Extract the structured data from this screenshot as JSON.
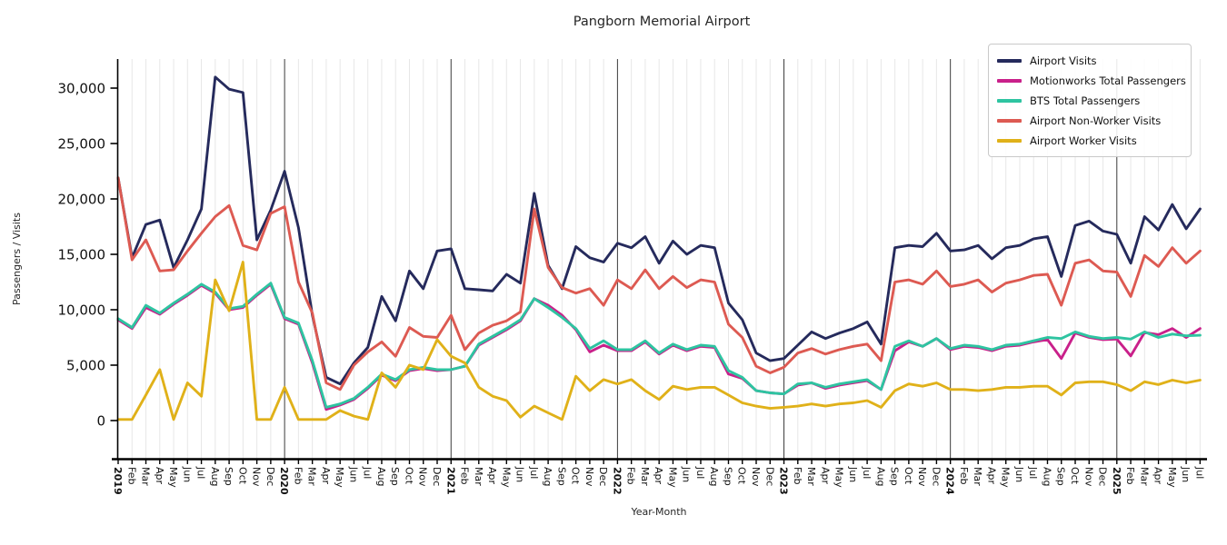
{
  "title": "Pangborn Memorial Airport",
  "x_axis_label": "Year-Month",
  "y_axis_label": "Passengers / Visits",
  "chart_data": {
    "type": "line",
    "title": "Pangborn Memorial Airport",
    "xlabel": "Year-Month",
    "ylabel": "Passengers / Visits",
    "legend_position": "upper right",
    "grid": "vertical gridline per month; darker vertical line at each year start",
    "yticks": [
      0,
      5000,
      10000,
      15000,
      20000,
      25000,
      30000
    ],
    "ylim": [
      0,
      32500
    ],
    "x_tick_labels": [
      "2019",
      "Feb",
      "Mar",
      "Apr",
      "May",
      "Jun",
      "Jul",
      "Aug",
      "Sep",
      "Oct",
      "Nov",
      "Dec",
      "2020",
      "Feb",
      "Mar",
      "Apr",
      "May",
      "Jun",
      "Jul",
      "Aug",
      "Sep",
      "Oct",
      "Nov",
      "Dec",
      "2021",
      "Feb",
      "Mar",
      "Apr",
      "May",
      "Jun",
      "Jul",
      "Aug",
      "Sep",
      "Oct",
      "Nov",
      "Dec",
      "2022",
      "Feb",
      "Mar",
      "Apr",
      "May",
      "Jun",
      "Jul",
      "Aug",
      "Sep",
      "Oct",
      "Nov",
      "Dec",
      "2023",
      "Feb",
      "Mar",
      "Apr",
      "May",
      "Jun",
      "Jul",
      "Aug",
      "Sep",
      "Oct",
      "Nov",
      "Dec",
      "2024",
      "Feb",
      "Mar",
      "Apr",
      "May",
      "Jun",
      "Jul",
      "Aug",
      "Sep",
      "Oct",
      "Nov",
      "Dec",
      "2025",
      "Feb",
      "Mar",
      "Apr",
      "May",
      "Jun",
      "Jul"
    ],
    "series": [
      {
        "name": "Airport Visits",
        "color": "#252a5c",
        "values": [
          21900,
          14700,
          17700,
          18100,
          13800,
          16300,
          19100,
          31000,
          29900,
          29600,
          16300,
          19000,
          22500,
          17400,
          9500,
          3900,
          3300,
          5200,
          6600,
          11200,
          9000,
          13500,
          11900,
          15300,
          15500,
          11900,
          11800,
          11700,
          13200,
          12400,
          20500,
          14000,
          11900,
          15700,
          14700,
          14300,
          16000,
          15600,
          16600,
          14200,
          16200,
          15000,
          15800,
          15600,
          10600,
          9100,
          6100,
          5400,
          5600,
          6800,
          8000,
          7400,
          7900,
          8300,
          8900,
          6900,
          15600,
          15800,
          15700,
          16900,
          15300,
          15400,
          15800,
          14600,
          15600,
          15800,
          16400,
          16600,
          13000,
          17600,
          18000,
          17100,
          16800,
          14200,
          18400,
          17200,
          19500,
          17300,
          19100
        ]
      },
      {
        "name": "Motionworks Total Passengers",
        "color": "#c9208a",
        "values": [
          9100,
          8300,
          10200,
          9600,
          10500,
          11300,
          12200,
          11500,
          10000,
          10200,
          11300,
          12300,
          9200,
          8700,
          5200,
          1000,
          1400,
          1900,
          2900,
          4100,
          3600,
          4500,
          4700,
          4500,
          4600,
          4900,
          6800,
          7500,
          8200,
          9000,
          11000,
          10400,
          9500,
          8200,
          6200,
          6800,
          6300,
          6300,
          7100,
          6000,
          6800,
          6300,
          6700,
          6600,
          4200,
          3800,
          2700,
          2500,
          2400,
          3200,
          3400,
          2900,
          3200,
          3400,
          3600,
          2800,
          6300,
          7100,
          6700,
          7400,
          6400,
          6700,
          6600,
          6300,
          6700,
          6800,
          7100,
          7300,
          5600,
          7900,
          7500,
          7300,
          7350,
          5840,
          7950,
          7750,
          8300,
          7500,
          8300
        ]
      },
      {
        "name": "BTS Total Passengers",
        "color": "#2ec4a1",
        "values": [
          9200,
          8400,
          10400,
          9700,
          10600,
          11400,
          12300,
          11600,
          10100,
          10300,
          11400,
          12400,
          9300,
          8800,
          5400,
          1200,
          1500,
          2000,
          3000,
          4200,
          3700,
          4600,
          4800,
          4600,
          4600,
          4900,
          6900,
          7600,
          8300,
          9100,
          11000,
          10200,
          9300,
          8300,
          6500,
          7200,
          6400,
          6400,
          7200,
          6100,
          6900,
          6400,
          6800,
          6700,
          4500,
          3900,
          2700,
          2500,
          2400,
          3300,
          3400,
          3000,
          3300,
          3500,
          3700,
          2800,
          6700,
          7200,
          6700,
          7400,
          6500,
          6800,
          6700,
          6400,
          6800,
          6900,
          7200,
          7500,
          7400,
          8000,
          7600,
          7400,
          7500,
          7350,
          8000,
          7500,
          7800,
          7650,
          7700
        ]
      },
      {
        "name": "Airport Non-Worker Visits",
        "color": "#dd5a52",
        "values": [
          21900,
          14500,
          16300,
          13500,
          13600,
          15300,
          16900,
          18400,
          19400,
          15800,
          15400,
          18700,
          19300,
          12500,
          9700,
          3400,
          2800,
          5000,
          6200,
          7100,
          5800,
          8400,
          7600,
          7500,
          9500,
          6400,
          7900,
          8600,
          9000,
          9800,
          19100,
          13800,
          12000,
          11500,
          11900,
          10400,
          12700,
          11900,
          13600,
          11900,
          13000,
          12000,
          12700,
          12500,
          8700,
          7500,
          4900,
          4300,
          4800,
          6100,
          6500,
          6000,
          6400,
          6700,
          6900,
          5400,
          12500,
          12700,
          12300,
          13500,
          12100,
          12300,
          12700,
          11600,
          12400,
          12700,
          13100,
          13200,
          10400,
          14200,
          14500,
          13500,
          13400,
          11200,
          14900,
          13900,
          15600,
          14200,
          15300
        ]
      },
      {
        "name": "Airport Worker Visits",
        "color": "#e0b119",
        "values": [
          100,
          100,
          2300,
          4600,
          100,
          3400,
          2200,
          12700,
          9900,
          14300,
          100,
          100,
          3000,
          100,
          100,
          100,
          900,
          400,
          100,
          4300,
          3000,
          5000,
          4600,
          7300,
          5800,
          5200,
          3000,
          2200,
          1800,
          300,
          1300,
          700,
          100,
          4000,
          2700,
          3700,
          3300,
          3700,
          2700,
          1900,
          3100,
          2800,
          3000,
          3000,
          2300,
          1600,
          1300,
          1100,
          1200,
          1300,
          1500,
          1300,
          1500,
          1600,
          1800,
          1200,
          2700,
          3300,
          3100,
          3400,
          2800,
          2800,
          2700,
          2800,
          3000,
          3000,
          3100,
          3100,
          2300,
          3400,
          3500,
          3500,
          3250,
          2700,
          3500,
          3250,
          3650,
          3400,
          3650
        ]
      }
    ]
  }
}
